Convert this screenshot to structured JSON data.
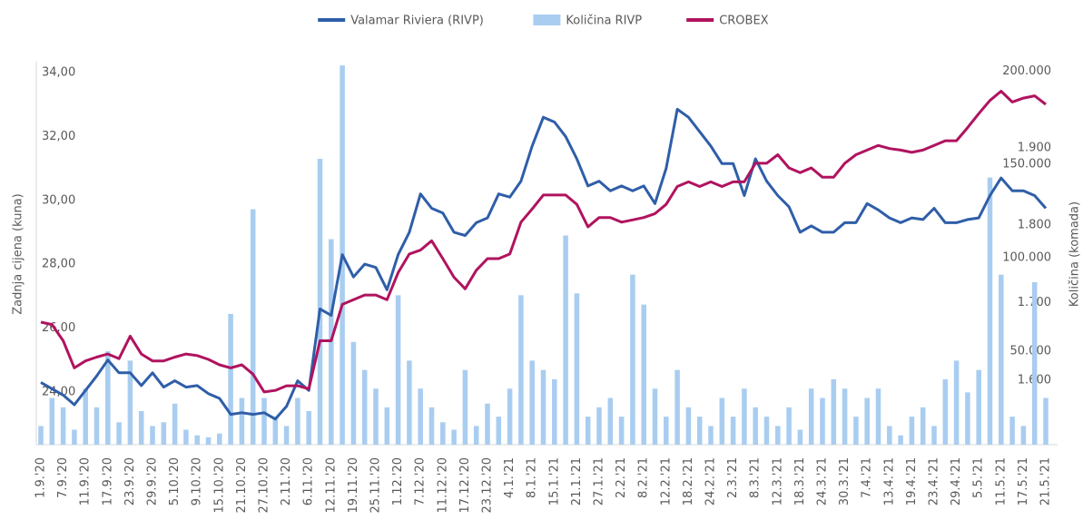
{
  "chart_data": {
    "type": "combo",
    "y_label": "Zadnja cijena (kuna)",
    "y2_label": "Količina (komada)",
    "categories": [
      "1.9.'20",
      null,
      "7.9.'20",
      null,
      "11.9.'20",
      null,
      "17.9.'20",
      null,
      "23.9.'20",
      null,
      "29.9.'20",
      null,
      "5.10.'20",
      null,
      "9.10.'20",
      null,
      "15.10.'20",
      null,
      "21.10.'20",
      null,
      "27.10.'20",
      null,
      "2.11.'20",
      null,
      "6.11.'20",
      null,
      "12.11.'20",
      null,
      "19.11.'20",
      null,
      "25.11.'20",
      null,
      "1.12.'20",
      null,
      "7.12.'20",
      null,
      "11.12.'20",
      null,
      "17.12.'20",
      null,
      "23.12.'20",
      null,
      "4.1.'21",
      null,
      "8.1.'21",
      null,
      "15.1.'21",
      null,
      "21.1.'21",
      null,
      "27.1.'21",
      null,
      "2.2.'21",
      null,
      "8.2.'21",
      null,
      "12.2.'21",
      null,
      "18.2.'21",
      null,
      "24.2.'21",
      null,
      "2.3.'21",
      null,
      "8.3.'21",
      null,
      "12.3.'21",
      null,
      "18.3.'21",
      null,
      "24.3.'21",
      null,
      "30.3.'21",
      null,
      "7.4.'21",
      null,
      "13.4.'21",
      null,
      "19.4.'21",
      null,
      "23.4.'21",
      null,
      "29.4.'21",
      null,
      "5.5.'21",
      null,
      "11.5.'21",
      null,
      "17.5.'21",
      null,
      "21.5.'21"
    ],
    "ylim": [
      22.35,
      34.34
    ],
    "yticks": [
      {
        "value": 24,
        "label": "24,00"
      },
      {
        "value": 26,
        "label": "26,00"
      },
      {
        "value": 28,
        "label": "28,00"
      },
      {
        "value": 30,
        "label": "30,00"
      },
      {
        "value": 32,
        "label": "32,00"
      },
      {
        "value": 34,
        "label": "34,00"
      }
    ],
    "y2lim": [
      0,
      205000
    ],
    "y2ticks": [
      {
        "value": 50000,
        "label": "50.000"
      },
      {
        "value": 100000,
        "label": "100.000"
      },
      {
        "value": 150000,
        "label": "150.000"
      },
      {
        "value": 200000,
        "label": "200.000"
      }
    ],
    "y3lim": [
      1517,
      2011
    ],
    "y3ticks": [
      {
        "value": 1600,
        "label": "1.600"
      },
      {
        "value": 1700,
        "label": "1.700"
      },
      {
        "value": 1800,
        "label": "1.800"
      },
      {
        "value": 1900,
        "label": "1.900"
      }
    ],
    "grid": false,
    "series": [
      {
        "name": "Valamar Riviera (RIVP)",
        "type": "line",
        "axis": "y",
        "color": "#2f5ea8",
        "values": [
          24.3,
          24.1,
          23.9,
          23.6,
          24.05,
          24.5,
          25.0,
          24.6,
          24.6,
          24.2,
          24.6,
          24.15,
          24.35,
          24.15,
          24.2,
          23.95,
          23.8,
          23.3,
          23.35,
          23.3,
          23.35,
          23.15,
          23.55,
          24.35,
          24.05,
          26.6,
          26.4,
          28.3,
          27.6,
          28.0,
          27.9,
          27.2,
          28.3,
          29.0,
          30.2,
          29.75,
          29.6,
          29.0,
          28.9,
          29.3,
          29.45,
          30.2,
          30.1,
          30.6,
          31.7,
          32.6,
          32.45,
          32.0,
          31.3,
          30.45,
          30.6,
          30.3,
          30.45,
          30.3,
          30.45,
          29.9,
          31.0,
          32.85,
          32.6,
          32.15,
          31.7,
          31.15,
          31.15,
          30.15,
          31.3,
          30.6,
          30.15,
          29.8,
          29.0,
          29.2,
          29.0,
          29.0,
          29.3,
          29.3,
          29.9,
          29.7,
          29.45,
          29.3,
          29.45,
          29.4,
          29.75,
          29.3,
          29.3,
          29.4,
          29.45,
          30.15,
          30.7,
          30.3,
          30.3,
          30.15,
          29.75
        ]
      },
      {
        "name": "Količina RIVP",
        "type": "bar",
        "axis": "y2",
        "color": "#a9cdf0",
        "values": [
          10000,
          25000,
          20000,
          8000,
          30000,
          20000,
          50000,
          12000,
          45000,
          18000,
          10000,
          12000,
          22000,
          8000,
          5000,
          4000,
          6000,
          70000,
          25000,
          126000,
          25000,
          15000,
          10000,
          25000,
          18000,
          153000,
          110000,
          203000,
          55000,
          40000,
          30000,
          20000,
          80000,
          45000,
          30000,
          20000,
          12000,
          8000,
          40000,
          10000,
          22000,
          15000,
          30000,
          80000,
          45000,
          40000,
          35000,
          112000,
          81000,
          15000,
          20000,
          25000,
          15000,
          91000,
          75000,
          30000,
          15000,
          40000,
          20000,
          15000,
          10000,
          25000,
          15000,
          30000,
          20000,
          15000,
          10000,
          20000,
          8000,
          30000,
          25000,
          35000,
          30000,
          15000,
          25000,
          30000,
          10000,
          5000,
          15000,
          20000,
          10000,
          35000,
          45000,
          28000,
          40000,
          143000,
          91000,
          15000,
          10000,
          87000,
          25000
        ]
      },
      {
        "name": "CROBEX",
        "type": "line",
        "axis": "y3",
        "color": "#b0135f",
        "values": [
          1675,
          1672,
          1651,
          1616,
          1625,
          1630,
          1634,
          1628,
          1657,
          1634,
          1625,
          1625,
          1630,
          1634,
          1632,
          1627,
          1620,
          1616,
          1620,
          1608,
          1585,
          1587,
          1593,
          1593,
          1589,
          1651,
          1651,
          1698,
          1704,
          1710,
          1710,
          1704,
          1739,
          1763,
          1768,
          1780,
          1757,
          1733,
          1718,
          1742,
          1757,
          1757,
          1763,
          1804,
          1821,
          1839,
          1839,
          1839,
          1827,
          1798,
          1810,
          1810,
          1804,
          1807,
          1810,
          1815,
          1827,
          1850,
          1856,
          1850,
          1856,
          1850,
          1856,
          1856,
          1880,
          1880,
          1891,
          1874,
          1868,
          1874,
          1862,
          1862,
          1880,
          1891,
          1897,
          1903,
          1899,
          1897,
          1894,
          1897,
          1903,
          1909,
          1909,
          1926,
          1944,
          1961,
          1973,
          1959,
          1964,
          1967,
          1956
        ]
      }
    ]
  }
}
